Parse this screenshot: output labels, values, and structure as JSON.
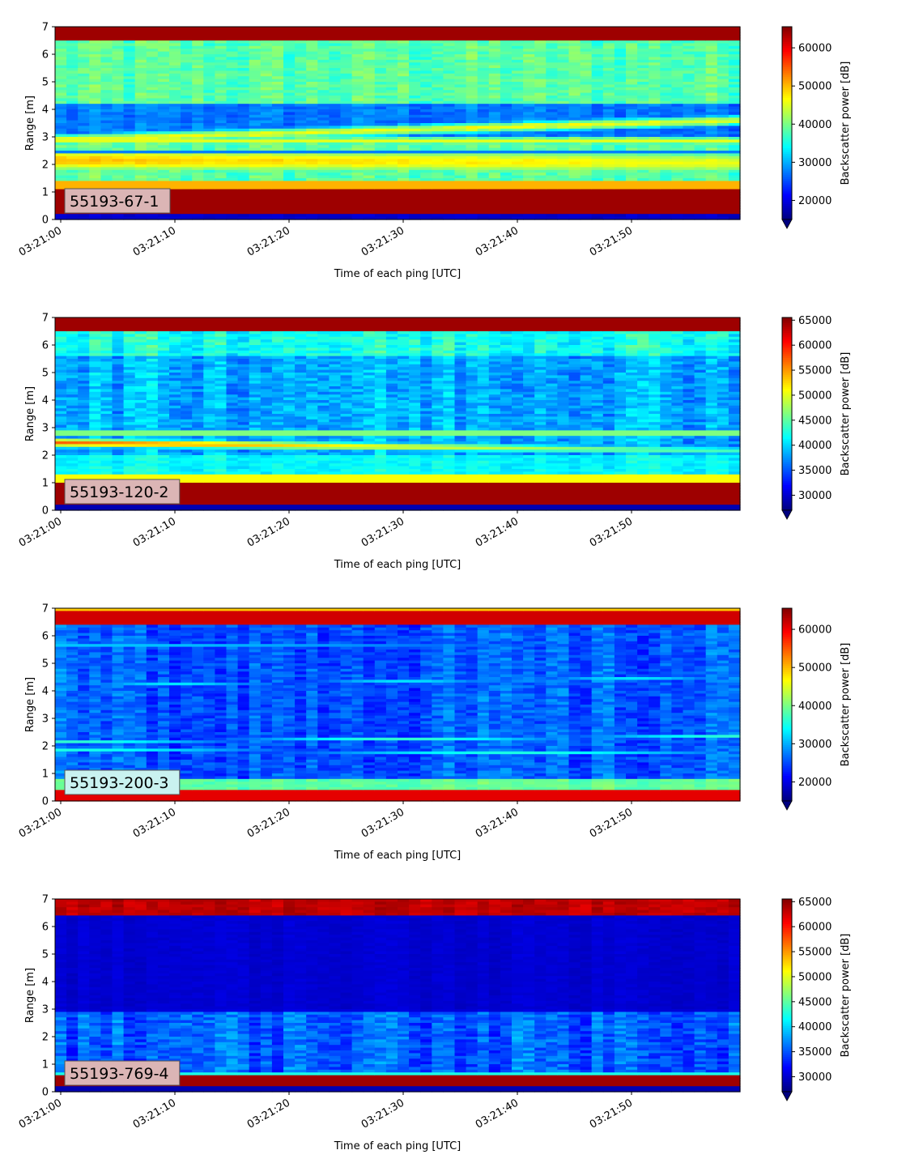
{
  "chart_data": [
    {
      "type": "heatmap",
      "label": "55193-67-1",
      "label_bg": "#dbb5b5",
      "xlabel": "Time of each ping [UTC]",
      "ylabel": "Range [m]",
      "x_ticks": [
        "03:21:00",
        "03:21:10",
        "03:21:20",
        "03:21:30",
        "03:21:40",
        "03:21:50"
      ],
      "y_ticks": [
        0,
        1,
        2,
        3,
        4,
        5,
        6,
        7
      ],
      "ylim": [
        0,
        7
      ],
      "colorbar": {
        "label": "Backscatter power [dB]",
        "vmin": 15000,
        "vmax": 65535,
        "ticks": [
          20000,
          30000,
          40000,
          50000,
          60000
        ]
      },
      "bands": [
        {
          "range": [
            0.2,
            1.1
          ],
          "value": "saturated (~65000)"
        },
        {
          "range": [
            1.5,
            2.8
          ],
          "value": "~50000 (yellow)"
        },
        {
          "range": [
            2.5,
            3.4
          ],
          "value": "~45000 rising layer"
        },
        {
          "range": [
            6.5,
            7.0
          ],
          "value": "saturated (~65000)"
        }
      ]
    },
    {
      "type": "heatmap",
      "label": "55193-120-2",
      "label_bg": "#dbb5b5",
      "xlabel": "Time of each ping [UTC]",
      "ylabel": "Range [m]",
      "x_ticks": [
        "03:21:00",
        "03:21:10",
        "03:21:20",
        "03:21:30",
        "03:21:40",
        "03:21:50"
      ],
      "y_ticks": [
        0,
        1,
        2,
        3,
        4,
        5,
        6,
        7
      ],
      "ylim": [
        0,
        7
      ],
      "colorbar": {
        "label": "Backscatter power [dB]",
        "vmin": 27000,
        "vmax": 65535,
        "ticks": [
          30000,
          35000,
          40000,
          45000,
          50000,
          55000,
          60000,
          65000
        ]
      },
      "bands": [
        {
          "range": [
            0.2,
            1.0
          ],
          "value": "saturated (~65000)"
        },
        {
          "range": [
            2.2,
            2.6
          ],
          "value": "~55000 descending layer"
        },
        {
          "range": [
            2.6,
            3.0
          ],
          "value": "~48000"
        },
        {
          "range": [
            6.5,
            7.0
          ],
          "value": "saturated (~65000)"
        }
      ]
    },
    {
      "type": "heatmap",
      "label": "55193-200-3",
      "label_bg": "#c9f2f0",
      "xlabel": "Time of each ping [UTC]",
      "ylabel": "Range [m]",
      "x_ticks": [
        "03:21:00",
        "03:21:10",
        "03:21:20",
        "03:21:30",
        "03:21:40",
        "03:21:50"
      ],
      "y_ticks": [
        0,
        1,
        2,
        3,
        4,
        5,
        6,
        7
      ],
      "ylim": [
        0,
        7
      ],
      "colorbar": {
        "label": "Backscatter power [dB]",
        "vmin": 15000,
        "vmax": 65535,
        "ticks": [
          20000,
          30000,
          40000,
          50000,
          60000
        ]
      },
      "bands": [
        {
          "range": [
            0.0,
            0.35
          ],
          "value": "saturated (~65000)"
        },
        {
          "range": [
            1.6,
            2.4
          ],
          "value": "~35000 thin lines"
        },
        {
          "range": [
            4.0,
            4.4
          ],
          "value": "~32000 thin line"
        },
        {
          "range": [
            6.3,
            7.0
          ],
          "value": "saturated (~65000)"
        }
      ]
    },
    {
      "type": "heatmap",
      "label": "55193-769-4",
      "label_bg": "#dbb5b5",
      "xlabel": "Time of each ping [UTC]",
      "ylabel": "Range [m]",
      "x_ticks": [
        "03:21:00",
        "03:21:10",
        "03:21:20",
        "03:21:30",
        "03:21:40",
        "03:21:50"
      ],
      "y_ticks": [
        0,
        1,
        2,
        3,
        4,
        5,
        6,
        7
      ],
      "ylim": [
        0,
        7
      ],
      "colorbar": {
        "label": "Backscatter power [dB]",
        "vmin": 27000,
        "vmax": 65535,
        "ticks": [
          30000,
          35000,
          40000,
          45000,
          50000,
          55000,
          60000,
          65000
        ]
      },
      "bands": [
        {
          "range": [
            0.25,
            0.65
          ],
          "value": "saturated (~65000)"
        },
        {
          "range": [
            0.65,
            2.9
          ],
          "value": "~33000"
        },
        {
          "range": [
            6.4,
            7.0
          ],
          "value": "saturated (~65000)"
        }
      ]
    }
  ]
}
